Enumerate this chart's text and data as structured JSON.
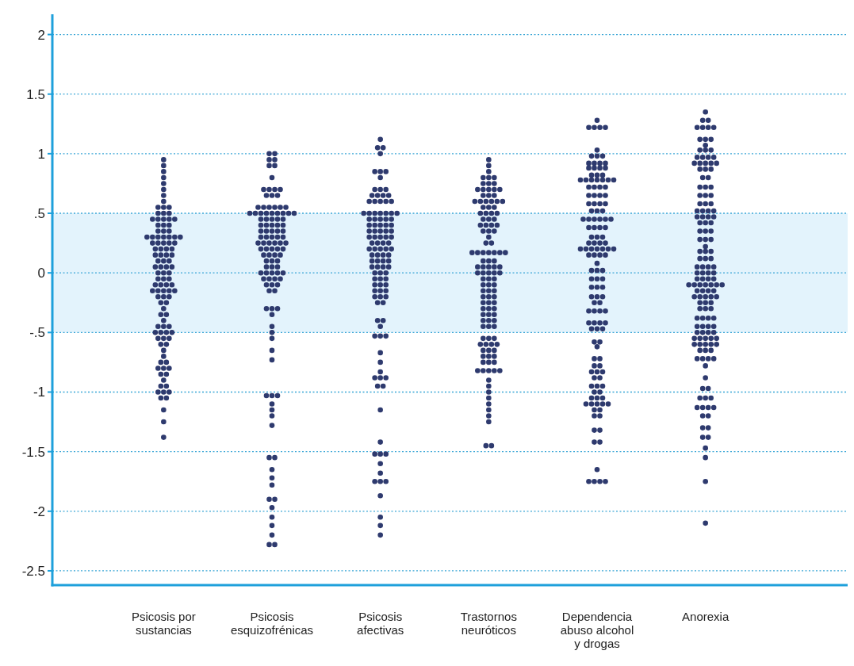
{
  "chart_data": {
    "type": "scatter",
    "categories": [
      "Psicosis por sustancias",
      "Psicosis esquizofrénicas",
      "Psicosis afectivas",
      "Trastornos neuróticos",
      "Dependencia abuso alcohol y drogas",
      "Anorexia"
    ],
    "ylim": [
      -2.62,
      2.17
    ],
    "yticks": [
      2,
      1.5,
      1,
      {
        "value": 0.5,
        "label": ".5"
      },
      0,
      {
        "value": -0.5,
        "label": "-.5"
      },
      -1,
      -1.5,
      -2,
      -2.5
    ],
    "grid": "y",
    "marker": "circle",
    "bands": [
      {
        "axis": "y",
        "from": -0.5,
        "to": 0.5,
        "color": "#e3f3fc"
      }
    ],
    "series": [
      {
        "type": "scatter",
        "color": "#2e3a6e",
        "x": [
          "Psicosis por sustancias",
          "Psicosis por sustancias",
          "Psicosis por sustancias",
          "Psicosis por sustancias",
          "Psicosis por sustancias",
          "Psicosis por sustancias",
          "Psicosis por sustancias",
          "Psicosis por sustancias",
          "Psicosis por sustancias",
          "Psicosis por sustancias",
          "Psicosis por sustancias",
          "Psicosis por sustancias",
          "Psicosis por sustancias",
          "Psicosis por sustancias",
          "Psicosis por sustancias",
          "Psicosis por sustancias",
          "Psicosis por sustancias",
          "Psicosis por sustancias",
          "Psicosis por sustancias",
          "Psicosis por sustancias",
          "Psicosis por sustancias",
          "Psicosis por sustancias",
          "Psicosis por sustancias",
          "Psicosis por sustancias",
          "Psicosis por sustancias",
          "Psicosis por sustancias",
          "Psicosis por sustancias",
          "Psicosis por sustancias",
          "Psicosis por sustancias",
          "Psicosis por sustancias",
          "Psicosis por sustancias",
          "Psicosis por sustancias",
          "Psicosis por sustancias",
          "Psicosis por sustancias",
          "Psicosis por sustancias",
          "Psicosis por sustancias",
          "Psicosis por sustancias",
          "Psicosis por sustancias",
          "Psicosis por sustancias",
          "Psicosis por sustancias",
          "Psicosis por sustancias",
          "Psicosis por sustancias",
          "Psicosis por sustancias",
          "Psicosis por sustancias",
          "Psicosis por sustancias",
          "Psicosis por sustancias",
          "Psicosis por sustancias",
          "Psicosis por sustancias",
          "Psicosis por sustancias",
          "Psicosis por sustancias",
          "Psicosis por sustancias",
          "Psicosis por sustancias",
          "Psicosis por sustancias",
          "Psicosis por sustancias",
          "Psicosis por sustancias",
          "Psicosis por sustancias",
          "Psicosis por sustancias",
          "Psicosis por sustancias",
          "Psicosis por sustancias",
          "Psicosis por sustancias",
          "Psicosis por sustancias",
          "Psicosis por sustancias",
          "Psicosis por sustancias",
          "Psicosis por sustancias",
          "Psicosis por sustancias",
          "Psicosis por sustancias",
          "Psicosis por sustancias",
          "Psicosis por sustancias",
          "Psicosis por sustancias",
          "Psicosis por sustancias",
          "Psicosis por sustancias",
          "Psicosis por sustancias",
          "Psicosis por sustancias",
          "Psicosis por sustancias",
          "Psicosis por sustancias",
          "Psicosis por sustancias",
          "Psicosis por sustancias",
          "Psicosis por sustancias",
          "Psicosis por sustancias",
          "Psicosis por sustancias",
          "Psicosis por sustancias",
          "Psicosis por sustancias",
          "Psicosis por sustancias",
          "Psicosis por sustancias",
          "Psicosis por sustancias",
          "Psicosis por sustancias",
          "Psicosis por sustancias",
          "Psicosis por sustancias",
          "Psicosis por sustancias",
          "Psicosis por sustancias",
          "Psicosis por sustancias",
          "Psicosis por sustancias",
          "Psicosis por sustancias",
          "Psicosis por sustancias",
          "Psicosis por sustancias",
          "Psicosis por sustancias",
          "Psicosis por sustancias",
          "Psicosis por sustancias",
          "Psicosis por sustancias",
          "Psicosis por sustancias",
          "Psicosis por sustancias",
          "Psicosis por sustancias",
          "Psicosis por sustancias",
          "Psicosis por sustancias",
          "Psicosis por sustancias",
          "Psicosis por sustancias",
          "Psicosis por sustancias",
          "Psicosis por sustancias"
        ],
        "values": [
          0.95,
          0.9,
          0.85,
          0.8,
          0.75,
          0.7,
          0.65,
          0.6,
          0.55,
          0.55,
          0.55,
          0.5,
          0.5,
          0.5,
          0.45,
          0.45,
          0.45,
          0.45,
          0.45,
          0.4,
          0.4,
          0.4,
          0.35,
          0.35,
          0.35,
          0.3,
          0.3,
          0.3,
          0.3,
          0.3,
          0.3,
          0.3,
          0.25,
          0.25,
          0.25,
          0.25,
          0.25,
          0.2,
          0.2,
          0.2,
          0.2,
          0.15,
          0.15,
          0.15,
          0.15,
          0.1,
          0.1,
          0.1,
          0.05,
          0.05,
          0.05,
          0.05,
          0,
          0,
          0,
          -0.05,
          -0.05,
          -0.05,
          -0.1,
          -0.1,
          -0.1,
          -0.1,
          -0.15,
          -0.15,
          -0.15,
          -0.15,
          -0.15,
          -0.2,
          -0.2,
          -0.2,
          -0.25,
          -0.25,
          -0.3,
          -0.35,
          -0.35,
          -0.4,
          -0.45,
          -0.45,
          -0.45,
          -0.5,
          -0.5,
          -0.5,
          -0.5,
          -0.55,
          -0.55,
          -0.55,
          -0.6,
          -0.6,
          -0.65,
          -0.7,
          -0.75,
          -0.75,
          -0.8,
          -0.8,
          -0.8,
          -0.85,
          -0.85,
          -0.9,
          -0.95,
          -0.95,
          -1,
          -1,
          -1,
          -1.05,
          -1.05,
          -1.15,
          -1.25,
          -1.38
        ]
      },
      {
        "type": "scatter",
        "color": "#2e3a6e",
        "x": [
          "Psicosis esquizofrénicas",
          "Psicosis esquizofrénicas",
          "Psicosis esquizofrénicas",
          "Psicosis esquizofrénicas",
          "Psicosis esquizofrénicas",
          "Psicosis esquizofrénicas",
          "Psicosis esquizofrénicas",
          "Psicosis esquizofrénicas",
          "Psicosis esquizofrénicas",
          "Psicosis esquizofrénicas",
          "Psicosis esquizofrénicas",
          "Psicosis esquizofrénicas",
          "Psicosis esquizofrénicas",
          "Psicosis esquizofrénicas",
          "Psicosis esquizofrénicas",
          "Psicosis esquizofrénicas",
          "Psicosis esquizofrénicas",
          "Psicosis esquizofrénicas",
          "Psicosis esquizofrénicas",
          "Psicosis esquizofrénicas",
          "Psicosis esquizofrénicas",
          "Psicosis esquizofrénicas",
          "Psicosis esquizofrénicas",
          "Psicosis esquizofrénicas",
          "Psicosis esquizofrénicas",
          "Psicosis esquizofrénicas",
          "Psicosis esquizofrénicas",
          "Psicosis esquizofrénicas",
          "Psicosis esquizofrénicas",
          "Psicosis esquizofrénicas",
          "Psicosis esquizofrénicas",
          "Psicosis esquizofrénicas",
          "Psicosis esquizofrénicas",
          "Psicosis esquizofrénicas",
          "Psicosis esquizofrénicas",
          "Psicosis esquizofrénicas",
          "Psicosis esquizofrénicas",
          "Psicosis esquizofrénicas",
          "Psicosis esquizofrénicas",
          "Psicosis esquizofrénicas",
          "Psicosis esquizofrénicas",
          "Psicosis esquizofrénicas",
          "Psicosis esquizofrénicas",
          "Psicosis esquizofrénicas",
          "Psicosis esquizofrénicas",
          "Psicosis esquizofrénicas",
          "Psicosis esquizofrénicas",
          "Psicosis esquizofrénicas",
          "Psicosis esquizofrénicas",
          "Psicosis esquizofrénicas",
          "Psicosis esquizofrénicas",
          "Psicosis esquizofrénicas",
          "Psicosis esquizofrénicas",
          "Psicosis esquizofrénicas",
          "Psicosis esquizofrénicas",
          "Psicosis esquizofrénicas",
          "Psicosis esquizofrénicas",
          "Psicosis esquizofrénicas",
          "Psicosis esquizofrénicas",
          "Psicosis esquizofrénicas",
          "Psicosis esquizofrénicas",
          "Psicosis esquizofrénicas",
          "Psicosis esquizofrénicas",
          "Psicosis esquizofrénicas",
          "Psicosis esquizofrénicas",
          "Psicosis esquizofrénicas",
          "Psicosis esquizofrénicas",
          "Psicosis esquizofrénicas",
          "Psicosis esquizofrénicas",
          "Psicosis esquizofrénicas",
          "Psicosis esquizofrénicas",
          "Psicosis esquizofrénicas",
          "Psicosis esquizofrénicas",
          "Psicosis esquizofrénicas",
          "Psicosis esquizofrénicas",
          "Psicosis esquizofrénicas",
          "Psicosis esquizofrénicas",
          "Psicosis esquizofrénicas",
          "Psicosis esquizofrénicas",
          "Psicosis esquizofrénicas",
          "Psicosis esquizofrénicas",
          "Psicosis esquizofrénicas",
          "Psicosis esquizofrénicas",
          "Psicosis esquizofrénicas",
          "Psicosis esquizofrénicas",
          "Psicosis esquizofrénicas",
          "Psicosis esquizofrénicas",
          "Psicosis esquizofrénicas",
          "Psicosis esquizofrénicas",
          "Psicosis esquizofrénicas",
          "Psicosis esquizofrénicas",
          "Psicosis esquizofrénicas",
          "Psicosis esquizofrénicas",
          "Psicosis esquizofrénicas",
          "Psicosis esquizofrénicas",
          "Psicosis esquizofrénicas",
          "Psicosis esquizofrénicas",
          "Psicosis esquizofrénicas",
          "Psicosis esquizofrénicas",
          "Psicosis esquizofrénicas",
          "Psicosis esquizofrénicas",
          "Psicosis esquizofrénicas",
          "Psicosis esquizofrénicas",
          "Psicosis esquizofrénicas",
          "Psicosis esquizofrénicas",
          "Psicosis esquizofrénicas",
          "Psicosis esquizofrénicas",
          "Psicosis esquizofrénicas",
          "Psicosis esquizofrénicas",
          "Psicosis esquizofrénicas",
          "Psicosis esquizofrénicas",
          "Psicosis esquizofrénicas",
          "Psicosis esquizofrénicas"
        ],
        "values": [
          1,
          1,
          0.95,
          0.95,
          0.9,
          0.9,
          0.8,
          0.7,
          0.7,
          0.7,
          0.7,
          0.65,
          0.65,
          0.65,
          0.55,
          0.55,
          0.55,
          0.55,
          0.55,
          0.55,
          0.5,
          0.5,
          0.5,
          0.5,
          0.5,
          0.5,
          0.5,
          0.5,
          0.5,
          0.45,
          0.45,
          0.45,
          0.45,
          0.45,
          0.4,
          0.4,
          0.4,
          0.4,
          0.4,
          0.35,
          0.35,
          0.35,
          0.35,
          0.35,
          0.3,
          0.3,
          0.3,
          0.3,
          0.3,
          0.25,
          0.25,
          0.25,
          0.25,
          0.25,
          0.25,
          0.2,
          0.2,
          0.2,
          0.2,
          0.2,
          0.15,
          0.15,
          0.15,
          0.15,
          0.1,
          0.1,
          0.1,
          0.05,
          0.05,
          0.05,
          0,
          0,
          0,
          0,
          0,
          -0.05,
          -0.05,
          -0.05,
          -0.05,
          -0.1,
          -0.1,
          -0.1,
          -0.15,
          -0.15,
          -0.3,
          -0.3,
          -0.3,
          -0.35,
          -0.45,
          -0.5,
          -0.55,
          -0.65,
          -0.73,
          -1.03,
          -1.03,
          -1.03,
          -1.1,
          -1.15,
          -1.2,
          -1.28,
          -1.55,
          -1.55,
          -1.65,
          -1.72,
          -1.78,
          -1.9,
          -1.9,
          -1.97,
          -2.05,
          -2.12,
          -2.2,
          -2.28,
          -2.28
        ]
      },
      {
        "type": "scatter",
        "color": "#2e3a6e",
        "x": [
          "Psicosis afectivas",
          "Psicosis afectivas",
          "Psicosis afectivas",
          "Psicosis afectivas",
          "Psicosis afectivas",
          "Psicosis afectivas",
          "Psicosis afectivas",
          "Psicosis afectivas",
          "Psicosis afectivas",
          "Psicosis afectivas",
          "Psicosis afectivas",
          "Psicosis afectivas",
          "Psicosis afectivas",
          "Psicosis afectivas",
          "Psicosis afectivas",
          "Psicosis afectivas",
          "Psicosis afectivas",
          "Psicosis afectivas",
          "Psicosis afectivas",
          "Psicosis afectivas",
          "Psicosis afectivas",
          "Psicosis afectivas",
          "Psicosis afectivas",
          "Psicosis afectivas",
          "Psicosis afectivas",
          "Psicosis afectivas",
          "Psicosis afectivas",
          "Psicosis afectivas",
          "Psicosis afectivas",
          "Psicosis afectivas",
          "Psicosis afectivas",
          "Psicosis afectivas",
          "Psicosis afectivas",
          "Psicosis afectivas",
          "Psicosis afectivas",
          "Psicosis afectivas",
          "Psicosis afectivas",
          "Psicosis afectivas",
          "Psicosis afectivas",
          "Psicosis afectivas",
          "Psicosis afectivas",
          "Psicosis afectivas",
          "Psicosis afectivas",
          "Psicosis afectivas",
          "Psicosis afectivas",
          "Psicosis afectivas",
          "Psicosis afectivas",
          "Psicosis afectivas",
          "Psicosis afectivas",
          "Psicosis afectivas",
          "Psicosis afectivas",
          "Psicosis afectivas",
          "Psicosis afectivas",
          "Psicosis afectivas",
          "Psicosis afectivas",
          "Psicosis afectivas",
          "Psicosis afectivas",
          "Psicosis afectivas",
          "Psicosis afectivas",
          "Psicosis afectivas",
          "Psicosis afectivas",
          "Psicosis afectivas",
          "Psicosis afectivas",
          "Psicosis afectivas",
          "Psicosis afectivas",
          "Psicosis afectivas",
          "Psicosis afectivas",
          "Psicosis afectivas",
          "Psicosis afectivas",
          "Psicosis afectivas",
          "Psicosis afectivas",
          "Psicosis afectivas",
          "Psicosis afectivas",
          "Psicosis afectivas",
          "Psicosis afectivas",
          "Psicosis afectivas",
          "Psicosis afectivas",
          "Psicosis afectivas",
          "Psicosis afectivas",
          "Psicosis afectivas",
          "Psicosis afectivas",
          "Psicosis afectivas",
          "Psicosis afectivas",
          "Psicosis afectivas",
          "Psicosis afectivas",
          "Psicosis afectivas",
          "Psicosis afectivas",
          "Psicosis afectivas",
          "Psicosis afectivas",
          "Psicosis afectivas",
          "Psicosis afectivas",
          "Psicosis afectivas",
          "Psicosis afectivas",
          "Psicosis afectivas",
          "Psicosis afectivas",
          "Psicosis afectivas",
          "Psicosis afectivas",
          "Psicosis afectivas",
          "Psicosis afectivas",
          "Psicosis afectivas",
          "Psicosis afectivas",
          "Psicosis afectivas",
          "Psicosis afectivas",
          "Psicosis afectivas",
          "Psicosis afectivas",
          "Psicosis afectivas",
          "Psicosis afectivas",
          "Psicosis afectivas",
          "Psicosis afectivas",
          "Psicosis afectivas",
          "Psicosis afectivas",
          "Psicosis afectivas",
          "Psicosis afectivas"
        ],
        "values": [
          1.12,
          1.05,
          1.05,
          1,
          0.85,
          0.85,
          0.85,
          0.8,
          0.7,
          0.7,
          0.7,
          0.65,
          0.65,
          0.65,
          0.65,
          0.6,
          0.6,
          0.6,
          0.6,
          0.6,
          0.5,
          0.5,
          0.5,
          0.5,
          0.5,
          0.5,
          0.5,
          0.45,
          0.45,
          0.45,
          0.45,
          0.45,
          0.4,
          0.4,
          0.4,
          0.4,
          0.4,
          0.35,
          0.35,
          0.35,
          0.35,
          0.35,
          0.3,
          0.3,
          0.3,
          0.3,
          0.3,
          0.25,
          0.25,
          0.25,
          0.25,
          0.2,
          0.2,
          0.2,
          0.2,
          0.2,
          0.15,
          0.15,
          0.15,
          0.15,
          0.1,
          0.1,
          0.1,
          0.1,
          0.05,
          0.05,
          0.05,
          0.05,
          0,
          0,
          0,
          -0.05,
          -0.05,
          -0.05,
          -0.1,
          -0.1,
          -0.1,
          -0.15,
          -0.15,
          -0.15,
          -0.2,
          -0.2,
          -0.2,
          -0.25,
          -0.25,
          -0.4,
          -0.4,
          -0.45,
          -0.53,
          -0.53,
          -0.53,
          -0.67,
          -0.75,
          -0.83,
          -0.88,
          -0.88,
          -0.88,
          -0.95,
          -0.95,
          -1.15,
          -1.42,
          -1.52,
          -1.52,
          -1.52,
          -1.6,
          -1.68,
          -1.75,
          -1.75,
          -1.75,
          -1.87,
          -2.05,
          -2.12,
          -2.2
        ]
      },
      {
        "type": "scatter",
        "color": "#2e3a6e",
        "x": [
          "Trastornos neuróticos",
          "Trastornos neuróticos",
          "Trastornos neuróticos",
          "Trastornos neuróticos",
          "Trastornos neuróticos",
          "Trastornos neuróticos",
          "Trastornos neuróticos",
          "Trastornos neuróticos",
          "Trastornos neuróticos",
          "Trastornos neuróticos",
          "Trastornos neuróticos",
          "Trastornos neuróticos",
          "Trastornos neuróticos",
          "Trastornos neuróticos",
          "Trastornos neuróticos",
          "Trastornos neuróticos",
          "Trastornos neuróticos",
          "Trastornos neuróticos",
          "Trastornos neuróticos",
          "Trastornos neuróticos",
          "Trastornos neuróticos",
          "Trastornos neuróticos",
          "Trastornos neuróticos",
          "Trastornos neuróticos",
          "Trastornos neuróticos",
          "Trastornos neuróticos",
          "Trastornos neuróticos",
          "Trastornos neuróticos",
          "Trastornos neuróticos",
          "Trastornos neuróticos",
          "Trastornos neuróticos",
          "Trastornos neuróticos",
          "Trastornos neuróticos",
          "Trastornos neuróticos",
          "Trastornos neuróticos",
          "Trastornos neuróticos",
          "Trastornos neuróticos",
          "Trastornos neuróticos",
          "Trastornos neuróticos",
          "Trastornos neuróticos",
          "Trastornos neuróticos",
          "Trastornos neuróticos",
          "Trastornos neuróticos",
          "Trastornos neuróticos",
          "Trastornos neuróticos",
          "Trastornos neuróticos",
          "Trastornos neuróticos",
          "Trastornos neuróticos",
          "Trastornos neuróticos",
          "Trastornos neuróticos",
          "Trastornos neuróticos",
          "Trastornos neuróticos",
          "Trastornos neuróticos",
          "Trastornos neuróticos",
          "Trastornos neuróticos",
          "Trastornos neuróticos",
          "Trastornos neuróticos",
          "Trastornos neuróticos",
          "Trastornos neuróticos",
          "Trastornos neuróticos",
          "Trastornos neuróticos",
          "Trastornos neuróticos",
          "Trastornos neuróticos",
          "Trastornos neuróticos",
          "Trastornos neuróticos",
          "Trastornos neuróticos",
          "Trastornos neuróticos",
          "Trastornos neuróticos",
          "Trastornos neuróticos",
          "Trastornos neuróticos",
          "Trastornos neuróticos",
          "Trastornos neuróticos",
          "Trastornos neuróticos",
          "Trastornos neuróticos",
          "Trastornos neuróticos",
          "Trastornos neuróticos",
          "Trastornos neuróticos",
          "Trastornos neuróticos",
          "Trastornos neuróticos",
          "Trastornos neuróticos",
          "Trastornos neuróticos",
          "Trastornos neuróticos",
          "Trastornos neuróticos",
          "Trastornos neuróticos",
          "Trastornos neuróticos",
          "Trastornos neuróticos",
          "Trastornos neuróticos",
          "Trastornos neuróticos",
          "Trastornos neuróticos",
          "Trastornos neuróticos",
          "Trastornos neuróticos",
          "Trastornos neuróticos",
          "Trastornos neuróticos",
          "Trastornos neuróticos",
          "Trastornos neuróticos",
          "Trastornos neuróticos",
          "Trastornos neuróticos",
          "Trastornos neuróticos",
          "Trastornos neuróticos",
          "Trastornos neuróticos",
          "Trastornos neuróticos",
          "Trastornos neuróticos",
          "Trastornos neuróticos",
          "Trastornos neuróticos",
          "Trastornos neuróticos",
          "Trastornos neuróticos",
          "Trastornos neuróticos",
          "Trastornos neuróticos",
          "Trastornos neuróticos",
          "Trastornos neuróticos",
          "Trastornos neuróticos",
          "Trastornos neuróticos",
          "Trastornos neuróticos",
          "Trastornos neuróticos",
          "Trastornos neuróticos",
          "Trastornos neuróticos",
          "Trastornos neuróticos",
          "Trastornos neuróticos",
          "Trastornos neuróticos",
          "Trastornos neuróticos",
          "Trastornos neuróticos"
        ],
        "values": [
          0.95,
          0.9,
          0.85,
          0.8,
          0.8,
          0.8,
          0.75,
          0.75,
          0.75,
          0.7,
          0.7,
          0.7,
          0.7,
          0.7,
          0.65,
          0.65,
          0.65,
          0.6,
          0.6,
          0.6,
          0.6,
          0.6,
          0.6,
          0.55,
          0.55,
          0.55,
          0.5,
          0.5,
          0.5,
          0.5,
          0.45,
          0.45,
          0.45,
          0.4,
          0.4,
          0.4,
          0.4,
          0.35,
          0.35,
          0.35,
          0.3,
          0.25,
          0.25,
          0.17,
          0.17,
          0.17,
          0.17,
          0.17,
          0.17,
          0.17,
          0.1,
          0.1,
          0.1,
          0.05,
          0.05,
          0.05,
          0.05,
          0.05,
          0,
          0,
          0,
          0,
          0,
          -0.05,
          -0.05,
          -0.05,
          -0.1,
          -0.1,
          -0.1,
          -0.15,
          -0.15,
          -0.15,
          -0.2,
          -0.2,
          -0.2,
          -0.25,
          -0.25,
          -0.25,
          -0.3,
          -0.3,
          -0.3,
          -0.35,
          -0.35,
          -0.35,
          -0.4,
          -0.4,
          -0.4,
          -0.45,
          -0.45,
          -0.45,
          -0.55,
          -0.55,
          -0.55,
          -0.6,
          -0.6,
          -0.6,
          -0.6,
          -0.65,
          -0.65,
          -0.65,
          -0.7,
          -0.7,
          -0.7,
          -0.75,
          -0.75,
          -0.75,
          -0.82,
          -0.82,
          -0.82,
          -0.82,
          -0.82,
          -0.9,
          -0.95,
          -1,
          -1.05,
          -1.1,
          -1.15,
          -1.2,
          -1.25,
          -1.45,
          -1.45
        ]
      },
      {
        "type": "scatter",
        "color": "#2e3a6e",
        "x": [
          "Dependencia abuso alcohol y drogas",
          "Dependencia abuso alcohol y drogas",
          "Dependencia abuso alcohol y drogas",
          "Dependencia abuso alcohol y drogas",
          "Dependencia abuso alcohol y drogas",
          "Dependencia abuso alcohol y drogas",
          "Dependencia abuso alcohol y drogas",
          "Dependencia abuso alcohol y drogas",
          "Dependencia abuso alcohol y drogas",
          "Dependencia abuso alcohol y drogas",
          "Dependencia abuso alcohol y drogas",
          "Dependencia abuso alcohol y drogas",
          "Dependencia abuso alcohol y drogas",
          "Dependencia abuso alcohol y drogas",
          "Dependencia abuso alcohol y drogas",
          "Dependencia abuso alcohol y drogas",
          "Dependencia abuso alcohol y drogas",
          "Dependencia abuso alcohol y drogas",
          "Dependencia abuso alcohol y drogas",
          "Dependencia abuso alcohol y drogas",
          "Dependencia abuso alcohol y drogas",
          "Dependencia abuso alcohol y drogas",
          "Dependencia abuso alcohol y drogas",
          "Dependencia abuso alcohol y drogas",
          "Dependencia abuso alcohol y drogas",
          "Dependencia abuso alcohol y drogas",
          "Dependencia abuso alcohol y drogas",
          "Dependencia abuso alcohol y drogas",
          "Dependencia abuso alcohol y drogas",
          "Dependencia abuso alcohol y drogas",
          "Dependencia abuso alcohol y drogas",
          "Dependencia abuso alcohol y drogas",
          "Dependencia abuso alcohol y drogas",
          "Dependencia abuso alcohol y drogas",
          "Dependencia abuso alcohol y drogas",
          "Dependencia abuso alcohol y drogas",
          "Dependencia abuso alcohol y drogas",
          "Dependencia abuso alcohol y drogas",
          "Dependencia abuso alcohol y drogas",
          "Dependencia abuso alcohol y drogas",
          "Dependencia abuso alcohol y drogas",
          "Dependencia abuso alcohol y drogas",
          "Dependencia abuso alcohol y drogas",
          "Dependencia abuso alcohol y drogas",
          "Dependencia abuso alcohol y drogas",
          "Dependencia abuso alcohol y drogas",
          "Dependencia abuso alcohol y drogas",
          "Dependencia abuso alcohol y drogas",
          "Dependencia abuso alcohol y drogas",
          "Dependencia abuso alcohol y drogas",
          "Dependencia abuso alcohol y drogas",
          "Dependencia abuso alcohol y drogas",
          "Dependencia abuso alcohol y drogas",
          "Dependencia abuso alcohol y drogas",
          "Dependencia abuso alcohol y drogas",
          "Dependencia abuso alcohol y drogas",
          "Dependencia abuso alcohol y drogas",
          "Dependencia abuso alcohol y drogas",
          "Dependencia abuso alcohol y drogas",
          "Dependencia abuso alcohol y drogas",
          "Dependencia abuso alcohol y drogas",
          "Dependencia abuso alcohol y drogas",
          "Dependencia abuso alcohol y drogas",
          "Dependencia abuso alcohol y drogas",
          "Dependencia abuso alcohol y drogas",
          "Dependencia abuso alcohol y drogas",
          "Dependencia abuso alcohol y drogas",
          "Dependencia abuso alcohol y drogas",
          "Dependencia abuso alcohol y drogas",
          "Dependencia abuso alcohol y drogas",
          "Dependencia abuso alcohol y drogas",
          "Dependencia abuso alcohol y drogas",
          "Dependencia abuso alcohol y drogas",
          "Dependencia abuso alcohol y drogas",
          "Dependencia abuso alcohol y drogas",
          "Dependencia abuso alcohol y drogas",
          "Dependencia abuso alcohol y drogas",
          "Dependencia abuso alcohol y drogas",
          "Dependencia abuso alcohol y drogas",
          "Dependencia abuso alcohol y drogas",
          "Dependencia abuso alcohol y drogas",
          "Dependencia abuso alcohol y drogas",
          "Dependencia abuso alcohol y drogas",
          "Dependencia abuso alcohol y drogas",
          "Dependencia abuso alcohol y drogas",
          "Dependencia abuso alcohol y drogas",
          "Dependencia abuso alcohol y drogas",
          "Dependencia abuso alcohol y drogas",
          "Dependencia abuso alcohol y drogas",
          "Dependencia abuso alcohol y drogas",
          "Dependencia abuso alcohol y drogas",
          "Dependencia abuso alcohol y drogas",
          "Dependencia abuso alcohol y drogas",
          "Dependencia abuso alcohol y drogas",
          "Dependencia abuso alcohol y drogas",
          "Dependencia abuso alcohol y drogas",
          "Dependencia abuso alcohol y drogas",
          "Dependencia abuso alcohol y drogas",
          "Dependencia abuso alcohol y drogas",
          "Dependencia abuso alcohol y drogas",
          "Dependencia abuso alcohol y drogas",
          "Dependencia abuso alcohol y drogas",
          "Dependencia abuso alcohol y drogas",
          "Dependencia abuso alcohol y drogas",
          "Dependencia abuso alcohol y drogas",
          "Dependencia abuso alcohol y drogas",
          "Dependencia abuso alcohol y drogas",
          "Dependencia abuso alcohol y drogas",
          "Dependencia abuso alcohol y drogas",
          "Dependencia abuso alcohol y drogas",
          "Dependencia abuso alcohol y drogas",
          "Dependencia abuso alcohol y drogas",
          "Dependencia abuso alcohol y drogas",
          "Dependencia abuso alcohol y drogas",
          "Dependencia abuso alcohol y drogas",
          "Dependencia abuso alcohol y drogas",
          "Dependencia abuso alcohol y drogas",
          "Dependencia abuso alcohol y drogas",
          "Dependencia abuso alcohol y drogas",
          "Dependencia abuso alcohol y drogas",
          "Dependencia abuso alcohol y drogas",
          "Dependencia abuso alcohol y drogas",
          "Dependencia abuso alcohol y drogas",
          "Dependencia abuso alcohol y drogas",
          "Dependencia abuso alcohol y drogas",
          "Dependencia abuso alcohol y drogas",
          "Dependencia abuso alcohol y drogas",
          "Dependencia abuso alcohol y drogas",
          "Dependencia abuso alcohol y drogas",
          "Dependencia abuso alcohol y drogas",
          "Dependencia abuso alcohol y drogas",
          "Dependencia abuso alcohol y drogas",
          "Dependencia abuso alcohol y drogas",
          "Dependencia abuso alcohol y drogas"
        ],
        "values": [
          1.28,
          1.22,
          1.22,
          1.22,
          1.22,
          1.03,
          0.98,
          0.98,
          0.98,
          0.92,
          0.92,
          0.92,
          0.92,
          0.88,
          0.88,
          0.88,
          0.88,
          0.82,
          0.82,
          0.82,
          0.78,
          0.78,
          0.78,
          0.78,
          0.78,
          0.78,
          0.78,
          0.72,
          0.72,
          0.72,
          0.72,
          0.65,
          0.65,
          0.65,
          0.65,
          0.58,
          0.58,
          0.58,
          0.58,
          0.52,
          0.52,
          0.52,
          0.45,
          0.45,
          0.45,
          0.45,
          0.45,
          0.45,
          0.38,
          0.38,
          0.38,
          0.38,
          0.3,
          0.3,
          0.3,
          0.25,
          0.25,
          0.25,
          0.25,
          0.2,
          0.2,
          0.2,
          0.2,
          0.2,
          0.2,
          0.2,
          0.15,
          0.15,
          0.15,
          0.15,
          0.08,
          0.02,
          0.02,
          0.02,
          -0.05,
          -0.05,
          -0.05,
          -0.12,
          -0.12,
          -0.12,
          -0.2,
          -0.2,
          -0.2,
          -0.25,
          -0.25,
          -0.32,
          -0.32,
          -0.32,
          -0.32,
          -0.42,
          -0.42,
          -0.42,
          -0.42,
          -0.47,
          -0.47,
          -0.47,
          -0.58,
          -0.58,
          -0.62,
          -0.72,
          -0.72,
          -0.78,
          -0.78,
          -0.83,
          -0.83,
          -0.83,
          -0.88,
          -0.88,
          -0.95,
          -0.95,
          -0.95,
          -1,
          -1,
          -1.05,
          -1.05,
          -1.05,
          -1.1,
          -1.1,
          -1.1,
          -1.1,
          -1.1,
          -1.15,
          -1.15,
          -1.2,
          -1.2,
          -1.32,
          -1.32,
          -1.42,
          -1.42,
          -1.65,
          -1.75,
          -1.75,
          -1.75,
          -1.75
        ]
      },
      {
        "type": "scatter",
        "color": "#2e3a6e",
        "x": [
          "Anorexia",
          "Anorexia",
          "Anorexia",
          "Anorexia",
          "Anorexia",
          "Anorexia",
          "Anorexia",
          "Anorexia",
          "Anorexia",
          "Anorexia",
          "Anorexia",
          "Anorexia",
          "Anorexia",
          "Anorexia",
          "Anorexia",
          "Anorexia",
          "Anorexia",
          "Anorexia",
          "Anorexia",
          "Anorexia",
          "Anorexia",
          "Anorexia",
          "Anorexia",
          "Anorexia",
          "Anorexia",
          "Anorexia",
          "Anorexia",
          "Anorexia",
          "Anorexia",
          "Anorexia",
          "Anorexia",
          "Anorexia",
          "Anorexia",
          "Anorexia",
          "Anorexia",
          "Anorexia",
          "Anorexia",
          "Anorexia",
          "Anorexia",
          "Anorexia",
          "Anorexia",
          "Anorexia",
          "Anorexia",
          "Anorexia",
          "Anorexia",
          "Anorexia",
          "Anorexia",
          "Anorexia",
          "Anorexia",
          "Anorexia",
          "Anorexia",
          "Anorexia",
          "Anorexia",
          "Anorexia",
          "Anorexia",
          "Anorexia",
          "Anorexia",
          "Anorexia",
          "Anorexia",
          "Anorexia",
          "Anorexia",
          "Anorexia",
          "Anorexia",
          "Anorexia",
          "Anorexia",
          "Anorexia",
          "Anorexia",
          "Anorexia",
          "Anorexia",
          "Anorexia",
          "Anorexia",
          "Anorexia",
          "Anorexia",
          "Anorexia",
          "Anorexia",
          "Anorexia",
          "Anorexia",
          "Anorexia",
          "Anorexia",
          "Anorexia",
          "Anorexia",
          "Anorexia",
          "Anorexia",
          "Anorexia",
          "Anorexia",
          "Anorexia",
          "Anorexia",
          "Anorexia",
          "Anorexia",
          "Anorexia",
          "Anorexia",
          "Anorexia",
          "Anorexia",
          "Anorexia",
          "Anorexia",
          "Anorexia",
          "Anorexia",
          "Anorexia",
          "Anorexia",
          "Anorexia",
          "Anorexia",
          "Anorexia",
          "Anorexia",
          "Anorexia",
          "Anorexia",
          "Anorexia",
          "Anorexia",
          "Anorexia",
          "Anorexia",
          "Anorexia",
          "Anorexia",
          "Anorexia",
          "Anorexia",
          "Anorexia",
          "Anorexia",
          "Anorexia",
          "Anorexia",
          "Anorexia",
          "Anorexia",
          "Anorexia",
          "Anorexia",
          "Anorexia",
          "Anorexia",
          "Anorexia",
          "Anorexia",
          "Anorexia",
          "Anorexia",
          "Anorexia",
          "Anorexia",
          "Anorexia",
          "Anorexia",
          "Anorexia",
          "Anorexia",
          "Anorexia",
          "Anorexia",
          "Anorexia",
          "Anorexia",
          "Anorexia",
          "Anorexia",
          "Anorexia",
          "Anorexia",
          "Anorexia",
          "Anorexia",
          "Anorexia",
          "Anorexia"
        ],
        "values": [
          1.35,
          1.28,
          1.28,
          1.22,
          1.22,
          1.22,
          1.22,
          1.12,
          1.12,
          1.12,
          1.07,
          1.03,
          1.03,
          1.03,
          0.97,
          0.97,
          0.97,
          0.97,
          0.92,
          0.92,
          0.92,
          0.92,
          0.92,
          0.87,
          0.87,
          0.87,
          0.8,
          0.8,
          0.72,
          0.72,
          0.72,
          0.65,
          0.65,
          0.65,
          0.58,
          0.58,
          0.58,
          0.52,
          0.52,
          0.52,
          0.52,
          0.47,
          0.47,
          0.47,
          0.47,
          0.42,
          0.42,
          0.42,
          0.35,
          0.35,
          0.35,
          0.28,
          0.28,
          0.28,
          0.22,
          0.18,
          0.18,
          0.18,
          0.12,
          0.12,
          0.12,
          0.05,
          0.05,
          0.05,
          0.05,
          0,
          0,
          0,
          0,
          -0.05,
          -0.05,
          -0.05,
          -0.05,
          -0.1,
          -0.1,
          -0.1,
          -0.1,
          -0.1,
          -0.1,
          -0.1,
          -0.15,
          -0.15,
          -0.15,
          -0.15,
          -0.2,
          -0.2,
          -0.2,
          -0.2,
          -0.2,
          -0.25,
          -0.25,
          -0.25,
          -0.3,
          -0.3,
          -0.3,
          -0.38,
          -0.38,
          -0.38,
          -0.38,
          -0.45,
          -0.45,
          -0.45,
          -0.45,
          -0.5,
          -0.5,
          -0.5,
          -0.5,
          -0.55,
          -0.55,
          -0.55,
          -0.55,
          -0.55,
          -0.6,
          -0.6,
          -0.6,
          -0.6,
          -0.6,
          -0.65,
          -0.65,
          -0.65,
          -0.72,
          -0.72,
          -0.72,
          -0.72,
          -0.78,
          -0.88,
          -0.97,
          -0.97,
          -1.05,
          -1.05,
          -1.05,
          -1.13,
          -1.13,
          -1.13,
          -1.13,
          -1.2,
          -1.2,
          -1.3,
          -1.3,
          -1.38,
          -1.38,
          -1.47,
          -1.55,
          -1.75,
          -2.1
        ]
      }
    ]
  }
}
